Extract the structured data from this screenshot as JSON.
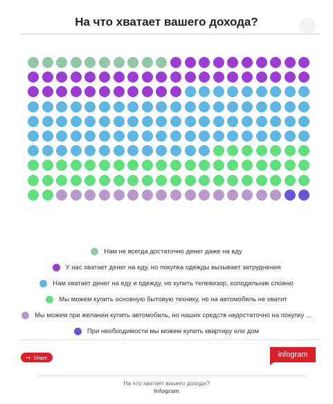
{
  "header": {
    "title": "На что хватает вашего дохода?"
  },
  "colors": {
    "cat1": "#93c8a7",
    "cat2": "#9b3dd4",
    "cat3": "#5eb7e3",
    "cat4": "#5fe07d",
    "cat5": "#b79acb",
    "cat6": "#6a53d6",
    "brand": "#d9202a"
  },
  "chart_data": {
    "type": "pictogram",
    "total": 200,
    "columns": 20,
    "rows": 10,
    "series": [
      {
        "name": "Нам не всегда достаточно денег даже на еду",
        "value": 10
      },
      {
        "name": "У нас хватает денег на еду, но покупка одежды вызывает затруднения",
        "value": 41
      },
      {
        "name": "Нам хватает денег на еду и одежду, но купить телевизор, холодильник сложно",
        "value": 82
      },
      {
        "name": "Мы можем купить основную бытовую технику, но на автомобиль не хватит",
        "value": 49
      },
      {
        "name": "Мы можем при желании купить автомобиль, но наших средств недостаточно на покупку ...",
        "value": 16
      },
      {
        "name": "При необходимости мы можем купить квартиру или дом",
        "value": 2
      }
    ]
  },
  "legend": {
    "items": [
      {
        "label": "Нам не всегда достаточно денег даже на еду",
        "color_key": "cat1"
      },
      {
        "label": "У нас хватает денег на еду, но покупка одежды вызывает затруднения",
        "color_key": "cat2"
      },
      {
        "label": "Нам хватает денег на еду и одежду, но купить телевизор, холодильник сложно",
        "color_key": "cat3"
      },
      {
        "label": "Мы можем купить основную бытовую технику, но на автомобиль не хватит",
        "color_key": "cat4"
      },
      {
        "label": "Мы можем при желании купить автомобиль, но наших средств недостаточно на покупку ...",
        "color_key": "cat5"
      },
      {
        "label": "При необходимости мы можем купить квартиру или дом",
        "color_key": "cat6"
      }
    ]
  },
  "footer": {
    "share_label": "Share",
    "share_icon": "share-icon",
    "logo_text": "infogram",
    "caption_title": "На что хватает вашего дохода?",
    "caption_source": "Infogram"
  }
}
